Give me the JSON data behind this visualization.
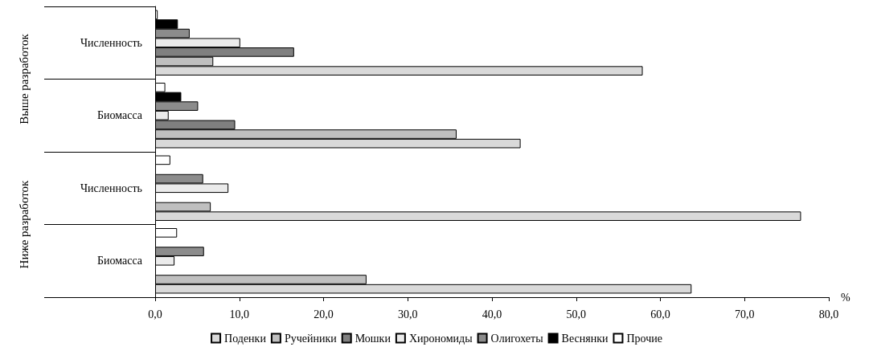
{
  "chart_data": {
    "type": "bar",
    "orientation": "horizontal",
    "categories": [
      "Численность",
      "Биомасса",
      "Численность",
      "Биомасса"
    ],
    "series": [
      {
        "name": "Поденки",
        "color": "#d9d9d9",
        "values": [
          57.9,
          43.4,
          76.7,
          63.7
        ]
      },
      {
        "name": "Ручейники",
        "color": "#bfbfbf",
        "values": [
          6.9,
          35.8,
          6.6,
          25.1
        ]
      },
      {
        "name": "Мошки",
        "color": "#808080",
        "values": [
          16.5,
          9.5,
          null,
          null
        ]
      },
      {
        "name": "Хирономиды",
        "color": "#ebebeb",
        "values": [
          10.1,
          1.6,
          8.7,
          2.3
        ]
      },
      {
        "name": "Олигохеты",
        "color": "#8c8c8c",
        "values": [
          4.1,
          5.1,
          5.7,
          5.8
        ]
      },
      {
        "name": "Веснянки",
        "color": "#000000",
        "values": [
          2.7,
          3.1,
          null,
          null
        ]
      },
      {
        "name": "Прочие",
        "color": "#ffffff",
        "values": [
          0.3,
          1.2,
          1.8,
          2.6
        ]
      }
    ],
    "xlabel": "%",
    "xlim": [
      0,
      80
    ],
    "xticks": [
      {
        "value": 0,
        "label": "0,0"
      },
      {
        "value": 10,
        "label": "10,0"
      },
      {
        "value": 20,
        "label": "20,0"
      },
      {
        "value": 30,
        "label": "30,0"
      },
      {
        "value": 40,
        "label": "40,0"
      },
      {
        "value": 50,
        "label": "50,0"
      },
      {
        "value": 60,
        "label": "60,0"
      },
      {
        "value": 70,
        "label": "70,0"
      },
      {
        "value": 80,
        "label": "80,0"
      }
    ],
    "annotations": [
      "Выше разработок",
      "Ниже разработок"
    ],
    "grid": false,
    "legend": "bottom"
  }
}
